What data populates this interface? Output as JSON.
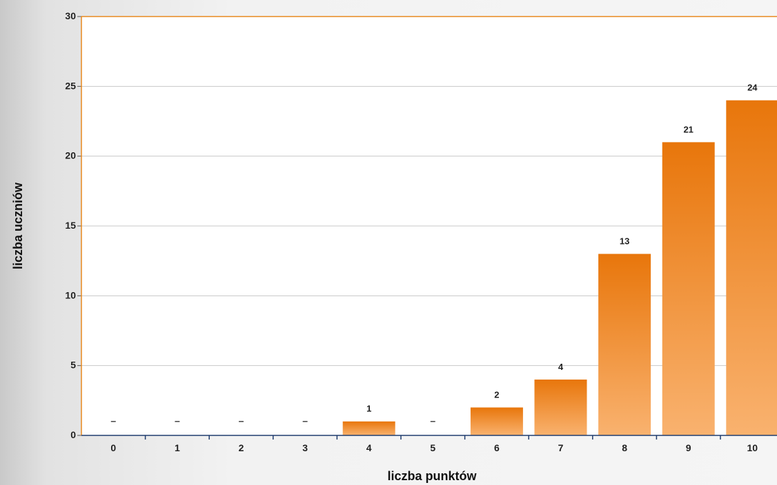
{
  "chart_data": {
    "type": "bar",
    "title": "",
    "xlabel": "liczba punktów",
    "ylabel": "liczba uczniów",
    "categories": [
      "0",
      "1",
      "2",
      "3",
      "4",
      "5",
      "6",
      "7",
      "8",
      "9",
      "10"
    ],
    "values": [
      0,
      0,
      0,
      0,
      1,
      0,
      2,
      4,
      13,
      21,
      24
    ],
    "data_labels": [
      "–",
      "–",
      "–",
      "–",
      "1",
      "–",
      "2",
      "4",
      "13",
      "21",
      "24"
    ],
    "yticks": [
      "0",
      "5",
      "10",
      "15",
      "20",
      "25",
      "30"
    ],
    "ylim": [
      0,
      30
    ],
    "grid": true,
    "legend": "none",
    "colors": {
      "bar_top": "#e8760b",
      "bar_bottom": "#f9b26f",
      "axis": "#e8891f",
      "grid": "#c8c8c8",
      "baseline": "#1f3c6e"
    }
  }
}
